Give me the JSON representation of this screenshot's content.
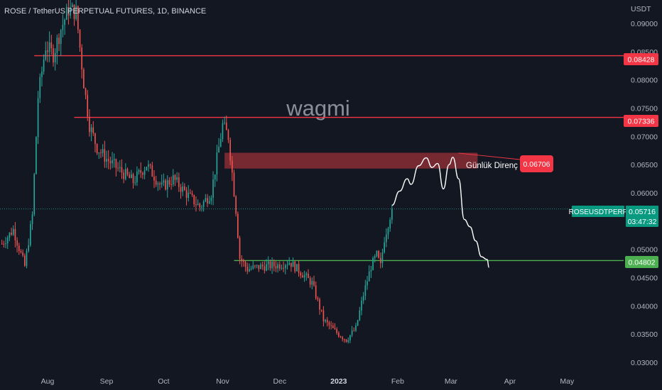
{
  "header": {
    "title": "ROSE / TetherUS PERPETUAL FUTURES, 1D, BINANCE",
    "currency": "USDT"
  },
  "watermark": "wagmi",
  "colors": {
    "background": "#131722",
    "up": "#26a69a",
    "down": "#ef5350",
    "resistance_line": "#f23645",
    "support_line": "#4caf50",
    "zone": "#7b2a33",
    "current_badge": "#089981",
    "axis_text": "#b2b5be",
    "projection": "#ffffff"
  },
  "price_axis": {
    "ticks": [
      "0.09000",
      "0.08500",
      "0.08000",
      "0.07500",
      "0.07000",
      "0.06500",
      "0.06000",
      "0.05500",
      "0.05000",
      "0.04500",
      "0.04000",
      "0.03500",
      "0.03000"
    ]
  },
  "time_axis": {
    "labels": [
      "Aug",
      "Sep",
      "Oct",
      "Nov",
      "Dec",
      "2023",
      "Feb",
      "Mar",
      "Apr",
      "May"
    ]
  },
  "price_badges": {
    "upper_resistance": "0.08428",
    "lower_resistance": "0.07336",
    "daily_resistance": "0.06706",
    "support": "0.04802"
  },
  "annotation": {
    "label": "Günlük Direnç"
  },
  "current_price": {
    "symbol": "ROSEUSDTPERP",
    "price": "0.05716",
    "countdown": "03:47:32"
  },
  "chart_data": {
    "type": "candlestick",
    "title": "ROSE / TetherUS PERPETUAL FUTURES, 1D, BINANCE",
    "y_unit": "USDT",
    "ylim": [
      0.0295,
      0.0925
    ],
    "x_range": [
      "2022-07-07",
      "2023-05-30"
    ],
    "grid": false,
    "horizontal_levels": [
      {
        "price": 0.08428,
        "from": "2022-07-25",
        "style": "resistance"
      },
      {
        "price": 0.07336,
        "from": "2022-08-15",
        "style": "resistance"
      },
      {
        "price": 0.04802,
        "from": "2022-11-07",
        "style": "support"
      }
    ],
    "resistance_zone": {
      "from": "2022-11-02",
      "to": "2023-03-15",
      "low": 0.0643,
      "high": 0.0671,
      "label": "Günlük Direnç",
      "price": 0.06706
    },
    "projection_path": [
      [
        "2023-01-29",
        0.0578
      ],
      [
        "2023-02-02",
        0.0603
      ],
      [
        "2023-02-06",
        0.0625
      ],
      [
        "2023-02-08",
        0.0615
      ],
      [
        "2023-02-12",
        0.0648
      ],
      [
        "2023-02-16",
        0.0662
      ],
      [
        "2023-02-19",
        0.0645
      ],
      [
        "2023-02-22",
        0.0652
      ],
      [
        "2023-02-25",
        0.0607
      ],
      [
        "2023-02-28",
        0.065
      ],
      [
        "2023-03-02",
        0.0663
      ],
      [
        "2023-03-05",
        0.0625
      ],
      [
        "2023-03-08",
        0.0553
      ],
      [
        "2023-03-11",
        0.054
      ],
      [
        "2023-03-14",
        0.0515
      ],
      [
        "2023-03-17",
        0.0487
      ],
      [
        "2023-03-20",
        0.0482
      ],
      [
        "2023-03-21",
        0.0468
      ]
    ],
    "current_price": 0.05716,
    "series_points": [
      [
        "2022-07-08",
        0.051
      ],
      [
        "2022-07-14",
        0.0535
      ],
      [
        "2022-07-20",
        0.047
      ],
      [
        "2022-07-24",
        0.056
      ],
      [
        "2022-07-27",
        0.077
      ],
      [
        "2022-07-31",
        0.086
      ],
      [
        "2022-08-04",
        0.0845
      ],
      [
        "2022-08-08",
        0.089
      ],
      [
        "2022-08-12",
        0.0925
      ],
      [
        "2022-08-16",
        0.092
      ],
      [
        "2022-08-20",
        0.0795
      ],
      [
        "2022-08-23",
        0.072
      ],
      [
        "2022-08-27",
        0.068
      ],
      [
        "2022-09-01",
        0.066
      ],
      [
        "2022-09-08",
        0.064
      ],
      [
        "2022-09-15",
        0.062
      ],
      [
        "2022-09-22",
        0.065
      ],
      [
        "2022-09-30",
        0.061
      ],
      [
        "2022-10-06",
        0.0625
      ],
      [
        "2022-10-14",
        0.0595
      ],
      [
        "2022-10-20",
        0.0575
      ],
      [
        "2022-10-26",
        0.06
      ],
      [
        "2022-11-01",
        0.072
      ],
      [
        "2022-11-04",
        0.07
      ],
      [
        "2022-11-08",
        0.057
      ],
      [
        "2022-11-10",
        0.0485
      ],
      [
        "2022-11-14",
        0.0465
      ],
      [
        "2022-11-22",
        0.047
      ],
      [
        "2022-11-30",
        0.0472
      ],
      [
        "2022-12-06",
        0.0478
      ],
      [
        "2022-12-12",
        0.046
      ],
      [
        "2022-12-18",
        0.044
      ],
      [
        "2022-12-24",
        0.0375
      ],
      [
        "2022-12-30",
        0.0355
      ],
      [
        "2023-01-05",
        0.034
      ],
      [
        "2023-01-10",
        0.036
      ],
      [
        "2023-01-14",
        0.042
      ],
      [
        "2023-01-18",
        0.047
      ],
      [
        "2023-01-21",
        0.049
      ],
      [
        "2023-01-23",
        0.047
      ],
      [
        "2023-01-25",
        0.052
      ],
      [
        "2023-01-28",
        0.056
      ],
      [
        "2023-01-29",
        0.05716
      ]
    ]
  }
}
